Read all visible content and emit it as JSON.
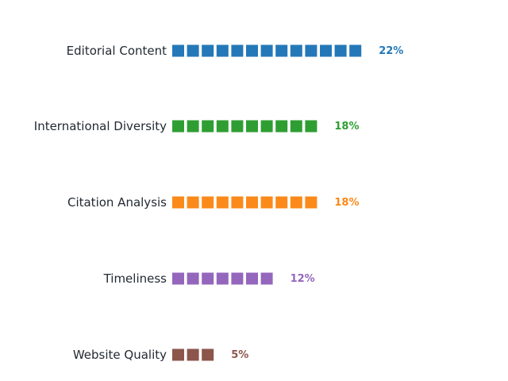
{
  "chart_data": {
    "type": "bar",
    "subtype": "pictorial-square-units",
    "title": "",
    "xlabel": "",
    "ylabel": "",
    "unit": "%",
    "grid": false,
    "legend": "none",
    "categories": [
      "Editorial Content",
      "International Diversity",
      "Citation Analysis",
      "Timeliness",
      "Website Quality"
    ],
    "values": [
      22,
      18,
      18,
      12,
      5
    ],
    "value_labels": [
      "22%",
      "18%",
      "18%",
      "12%",
      "5%"
    ],
    "units_shown": [
      13,
      10,
      10,
      7,
      3
    ],
    "colors": [
      "#2478b8",
      "#2e9e33",
      "#fb8a1a",
      "#9467bd",
      "#8c564b"
    ]
  }
}
